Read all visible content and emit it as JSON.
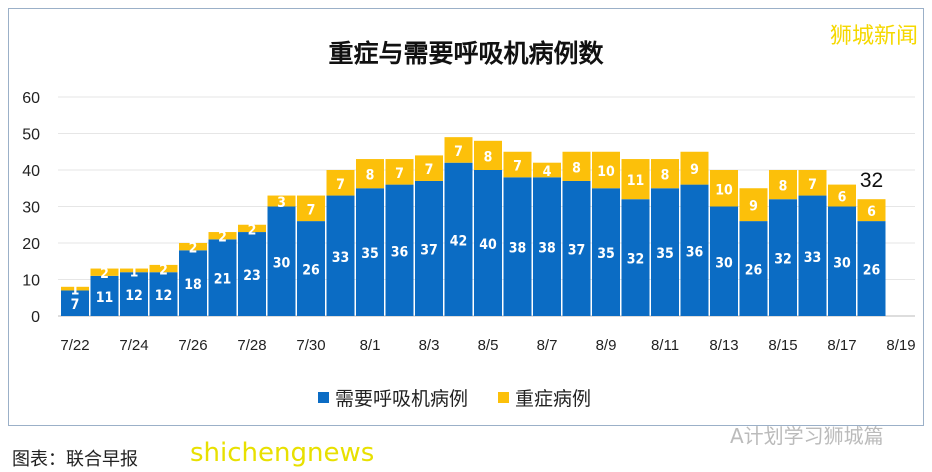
{
  "chart_data": {
    "type": "bar",
    "stacked": true,
    "title": "重症与需要呼吸机病例数",
    "categories": [
      "7/22",
      "7/23",
      "7/24",
      "7/25",
      "7/26",
      "7/27",
      "7/28",
      "7/29",
      "7/30",
      "7/31",
      "8/1",
      "8/2",
      "8/3",
      "8/4",
      "8/5",
      "8/6",
      "8/7",
      "8/8",
      "8/9",
      "8/10",
      "8/11",
      "8/12",
      "8/13",
      "8/14",
      "8/15",
      "8/16",
      "8/17",
      "8/18"
    ],
    "tick_labels": [
      "7/22",
      "7/24",
      "7/26",
      "7/28",
      "7/30",
      "8/1",
      "8/3",
      "8/5",
      "8/7",
      "8/9",
      "8/11",
      "8/13",
      "8/15",
      "8/17",
      "8/19"
    ],
    "series": [
      {
        "name": "需要呼吸机病例",
        "color": "#0b6cc4",
        "values": [
          7,
          11,
          12,
          12,
          18,
          21,
          23,
          30,
          26,
          33,
          35,
          36,
          37,
          42,
          40,
          38,
          38,
          37,
          35,
          32,
          35,
          36,
          30,
          26,
          32,
          33,
          30,
          26
        ]
      },
      {
        "name": "重症病例",
        "color": "#fcc00a",
        "values": [
          1,
          2,
          1,
          2,
          2,
          2,
          2,
          3,
          7,
          7,
          8,
          7,
          7,
          7,
          8,
          7,
          4,
          8,
          10,
          11,
          8,
          9,
          10,
          9,
          8,
          7,
          6,
          6
        ]
      }
    ],
    "total_annotation": "32",
    "ylim": [
      0,
      60
    ],
    "yticks": [
      0,
      10,
      20,
      30,
      40,
      50,
      60
    ],
    "grid": true,
    "legend": "bottom"
  },
  "logo": "狮城新闻",
  "caption": "图表：联合早报",
  "watermark": "shichengnews",
  "wechat": "A计划学习狮城篇"
}
